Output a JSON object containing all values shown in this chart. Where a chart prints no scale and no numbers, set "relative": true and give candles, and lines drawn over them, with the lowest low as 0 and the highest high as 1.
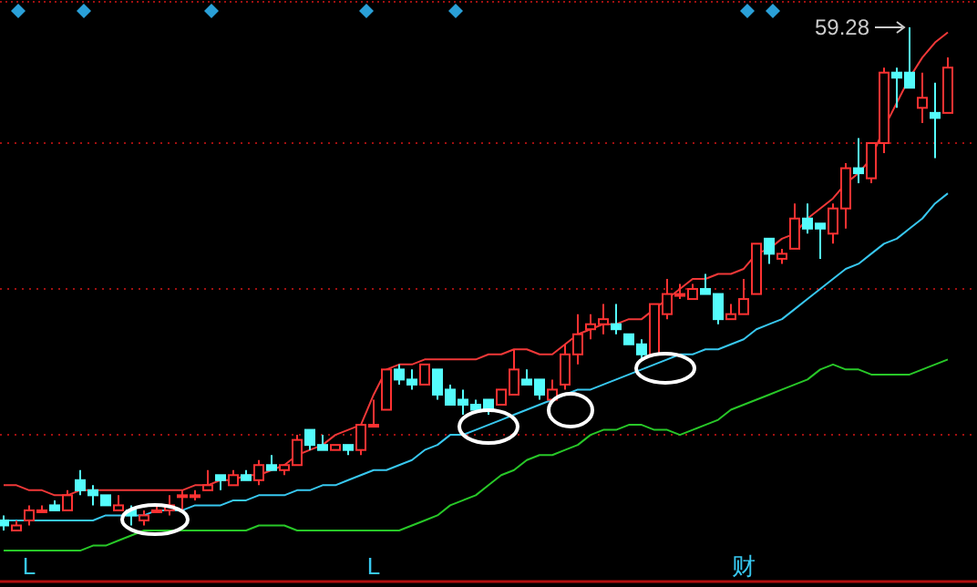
{
  "chart_data": {
    "type": "candlestick",
    "relative": true,
    "categories": [
      null,
      null,
      "L",
      null,
      null,
      null,
      null,
      null,
      null,
      null,
      null,
      null,
      null,
      null,
      null,
      null,
      null,
      null,
      null,
      null,
      null,
      null,
      null,
      null,
      null,
      null,
      null,
      null,
      null,
      "L",
      null,
      null,
      null,
      null,
      null,
      null,
      null,
      null,
      null,
      null,
      null,
      null,
      null,
      null,
      null,
      null,
      null,
      null,
      null,
      null,
      null,
      null,
      null,
      null,
      null,
      null,
      null,
      null,
      "财",
      null,
      null,
      null,
      null,
      null,
      null,
      null,
      null,
      null,
      null,
      null,
      null,
      null,
      null,
      null,
      null
    ],
    "ohlc": [
      [
        0.02,
        0.03,
        0.0,
        0.01
      ],
      [
        0,
        0.02,
        0,
        0.01
      ],
      [
        0.02,
        0.05,
        0.01,
        0.04
      ],
      [
        0.04,
        0.05,
        0.04,
        0.04
      ],
      [
        0.05,
        0.06,
        0.04,
        0.04
      ],
      [
        0.04,
        0.08,
        0.04,
        0.07
      ],
      [
        0.1,
        0.12,
        0.07,
        0.08
      ],
      [
        0.08,
        0.09,
        0.05,
        0.07
      ],
      [
        0.07,
        0.07,
        0.05,
        0.05
      ],
      [
        0.04,
        0.07,
        0.04,
        0.05
      ],
      [
        0.04,
        0.05,
        0.01,
        0.03
      ],
      [
        0.02,
        0.04,
        0.01,
        0.03
      ],
      [
        0.04,
        0.05,
        0.04,
        0.04
      ],
      [
        0.04,
        0.07,
        0.03,
        0.05
      ],
      [
        0.07,
        0.08,
        0.04,
        0.07
      ],
      [
        0.07,
        0.08,
        0.06,
        0.07
      ],
      [
        0.08,
        0.12,
        0.08,
        0.09
      ],
      [
        0.11,
        0.11,
        0.08,
        0.1
      ],
      [
        0.09,
        0.12,
        0.09,
        0.11
      ],
      [
        0.11,
        0.12,
        0.1,
        0.1
      ],
      [
        0.1,
        0.14,
        0.09,
        0.13
      ],
      [
        0.13,
        0.15,
        0.12,
        0.12
      ],
      [
        0.12,
        0.13,
        0.11,
        0.13
      ],
      [
        0.13,
        0.19,
        0.13,
        0.18
      ],
      [
        0.2,
        0.2,
        0.16,
        0.17
      ],
      [
        0.17,
        0.19,
        0.16,
        0.16
      ],
      [
        0.16,
        0.17,
        0.16,
        0.17
      ],
      [
        0.17,
        0.17,
        0.15,
        0.16
      ],
      [
        0.16,
        0.21,
        0.15,
        0.21
      ],
      [
        0.21,
        0.26,
        0.21,
        0.21
      ],
      [
        0.24,
        0.32,
        0.24,
        0.32
      ],
      [
        0.32,
        0.33,
        0.29,
        0.3
      ],
      [
        0.3,
        0.32,
        0.28,
        0.29
      ],
      [
        0.29,
        0.33,
        0.29,
        0.33
      ],
      [
        0.32,
        0.32,
        0.26,
        0.27
      ],
      [
        0.28,
        0.29,
        0.25,
        0.25
      ],
      [
        0.26,
        0.28,
        0.23,
        0.25
      ],
      [
        0.25,
        0.26,
        0.24,
        0.24
      ],
      [
        0.26,
        0.26,
        0.23,
        0.24
      ],
      [
        0.25,
        0.28,
        0.25,
        0.28
      ],
      [
        0.27,
        0.36,
        0.27,
        0.32
      ],
      [
        0.3,
        0.32,
        0.29,
        0.29
      ],
      [
        0.3,
        0.3,
        0.26,
        0.27
      ],
      [
        0.26,
        0.3,
        0.26,
        0.28
      ],
      [
        0.29,
        0.37,
        0.28,
        0.35
      ],
      [
        0.35,
        0.43,
        0.33,
        0.39
      ],
      [
        0.4,
        0.43,
        0.38,
        0.41
      ],
      [
        0.41,
        0.45,
        0.39,
        0.42
      ],
      [
        0.41,
        0.45,
        0.39,
        0.4
      ],
      [
        0.39,
        0.39,
        0.37,
        0.37
      ],
      [
        0.37,
        0.38,
        0.34,
        0.35
      ],
      [
        0.35,
        0.45,
        0.35,
        0.45
      ],
      [
        0.43,
        0.5,
        0.42,
        0.47
      ],
      [
        0.47,
        0.49,
        0.46,
        0.47
      ],
      [
        0.46,
        0.49,
        0.46,
        0.48
      ],
      [
        0.48,
        0.51,
        0.47,
        0.47
      ],
      [
        0.47,
        0.47,
        0.41,
        0.42
      ],
      [
        0.42,
        0.45,
        0.42,
        0.43
      ],
      [
        0.43,
        0.5,
        0.43,
        0.46
      ],
      [
        0.47,
        0.57,
        0.47,
        0.57
      ],
      [
        0.58,
        0.58,
        0.53,
        0.55
      ],
      [
        0.54,
        0.56,
        0.53,
        0.55
      ],
      [
        0.56,
        0.65,
        0.56,
        0.62
      ],
      [
        0.62,
        0.65,
        0.59,
        0.6
      ],
      [
        0.61,
        0.61,
        0.54,
        0.6
      ],
      [
        0.59,
        0.65,
        0.57,
        0.64
      ],
      [
        0.64,
        0.73,
        0.6,
        0.72
      ],
      [
        0.72,
        0.78,
        0.69,
        0.71
      ],
      [
        0.7,
        0.77,
        0.69,
        0.77
      ],
      [
        0.77,
        0.92,
        0.75,
        0.91
      ],
      [
        0.91,
        0.92,
        0.84,
        0.9
      ],
      [
        0.91,
        1,
        0.88,
        0.88
      ],
      [
        0.84,
        0.91,
        0.81,
        0.86
      ],
      [
        0.83,
        0.89,
        0.74,
        0.82
      ],
      [
        0.83,
        0.94,
        0.83,
        0.92
      ]
    ],
    "colors": [
      "#54fcfc",
      "#ff3232",
      "#ff3232",
      "#ff3232",
      "#54fcfc",
      "#ff3232",
      "#54fcfc",
      "#54fcfc",
      "#54fcfc",
      "#ff3232",
      "#54fcfc",
      "#ff3232",
      "#ff3232",
      "#ff3232",
      "#ff3232",
      "#ff3232",
      "#ff3232",
      "#54fcfc",
      "#ff3232",
      "#54fcfc",
      "#ff3232",
      "#54fcfc",
      "#ff3232",
      "#ff3232",
      "#54fcfc",
      "#54fcfc",
      "#ff3232",
      "#54fcfc",
      "#ff3232",
      "#ff3232",
      "#ff3232",
      "#54fcfc",
      "#54fcfc",
      "#ff3232",
      "#54fcfc",
      "#54fcfc",
      "#54fcfc",
      "#54fcfc",
      "#54fcfc",
      "#ff3232",
      "#ff3232",
      "#54fcfc",
      "#54fcfc",
      "#ff3232",
      "#ff3232",
      "#ff3232",
      "#ff3232",
      "#ff3232",
      "#54fcfc",
      "#54fcfc",
      "#54fcfc",
      "#ff3232",
      "#ff3232",
      "#ff3232",
      "#ff3232",
      "#54fcfc",
      "#54fcfc",
      "#ff3232",
      "#ff3232",
      "#ff3232",
      "#54fcfc",
      "#ff3232",
      "#ff3232",
      "#54fcfc",
      "#54fcfc",
      "#ff3232",
      "#ff3232",
      "#54fcfc",
      "#ff3232",
      "#ff3232",
      "#54fcfc",
      "#54fcfc",
      "#ff3232",
      "#54fcfc",
      "#ff3232"
    ],
    "series": [
      {
        "type": "line",
        "color": "#f03838",
        "values": [
          0.09,
          0.09,
          0.08,
          0.08,
          0.07,
          0.07,
          0.08,
          0.08,
          0.08,
          0.08,
          0.08,
          0.08,
          0.08,
          0.08,
          0.08,
          0.09,
          0.09,
          0.1,
          0.1,
          0.11,
          0.11,
          0.12,
          0.13,
          0.15,
          0.16,
          0.17,
          0.19,
          0.2,
          0.21,
          0.27,
          0.32,
          0.33,
          0.33,
          0.34,
          0.34,
          0.34,
          0.34,
          0.34,
          0.35,
          0.35,
          0.36,
          0.36,
          0.35,
          0.35,
          0.37,
          0.39,
          0.4,
          0.41,
          0.41,
          0.42,
          0.42,
          0.44,
          0.46,
          0.48,
          0.5,
          0.5,
          0.51,
          0.51,
          0.52,
          0.55,
          0.56,
          0.58,
          0.59,
          0.62,
          0.64,
          0.66,
          0.69,
          0.71,
          0.74,
          0.8,
          0.85,
          0.9,
          0.94,
          0.97,
          0.99
        ]
      },
      {
        "type": "line",
        "color": "#38c8f0",
        "values": [
          0.02,
          0.02,
          0.02,
          0.02,
          0.02,
          0.02,
          0.02,
          0.02,
          0.03,
          0.03,
          0.03,
          0.03,
          0.04,
          0.04,
          0.04,
          0.05,
          0.05,
          0.05,
          0.06,
          0.06,
          0.07,
          0.07,
          0.07,
          0.08,
          0.08,
          0.09,
          0.09,
          0.1,
          0.11,
          0.12,
          0.12,
          0.13,
          0.14,
          0.16,
          0.17,
          0.19,
          0.19,
          0.2,
          0.21,
          0.22,
          0.23,
          0.24,
          0.25,
          0.26,
          0.27,
          0.28,
          0.28,
          0.29,
          0.3,
          0.31,
          0.32,
          0.33,
          0.34,
          0.35,
          0.35,
          0.36,
          0.36,
          0.37,
          0.38,
          0.4,
          0.41,
          0.42,
          0.44,
          0.46,
          0.48,
          0.5,
          0.52,
          0.53,
          0.55,
          0.57,
          0.58,
          0.6,
          0.62,
          0.65,
          0.67
        ]
      },
      {
        "type": "line",
        "color": "#28c828",
        "values": [
          -0.04,
          -0.04,
          -0.04,
          -0.04,
          -0.04,
          -0.04,
          -0.04,
          -0.03,
          -0.03,
          -0.02,
          -0.01,
          0,
          0,
          0,
          0,
          0,
          0,
          0,
          0,
          0,
          0.01,
          0.01,
          0.01,
          0,
          0,
          0,
          0,
          0,
          0,
          0,
          0,
          0,
          0.01,
          0.02,
          0.03,
          0.05,
          0.06,
          0.07,
          0.09,
          0.11,
          0.12,
          0.14,
          0.15,
          0.15,
          0.16,
          0.17,
          0.19,
          0.2,
          0.2,
          0.21,
          0.21,
          0.2,
          0.2,
          0.19,
          0.2,
          0.21,
          0.22,
          0.24,
          0.25,
          0.26,
          0.27,
          0.28,
          0.29,
          0.3,
          0.32,
          0.33,
          0.32,
          0.32,
          0.31,
          0.31,
          0.31,
          0.31,
          0.32,
          0.33,
          0.34
        ]
      }
    ],
    "ref_lines": [
      {
        "axis": "y",
        "value": 0.19,
        "color": "#a01010",
        "line_style": "dotted"
      },
      {
        "axis": "y",
        "value": 0.48,
        "color": "#a01010",
        "line_style": "dotted"
      },
      {
        "axis": "y",
        "value": 0.77,
        "color": "#a01010",
        "line_style": "dotted"
      }
    ],
    "annotations": [
      "59.28"
    ]
  }
}
